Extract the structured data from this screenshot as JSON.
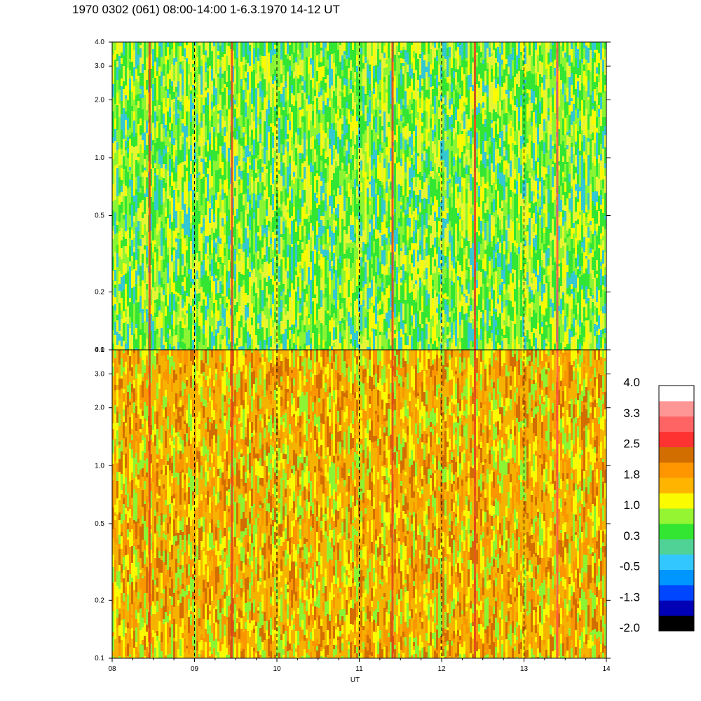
{
  "title": "1970 0302 (061) 08:00-14:00 1-6.3.1970  14-12 UT",
  "chart_data": {
    "type": "heatmap",
    "panels": [
      {
        "name": "upper",
        "dominant_colors": [
          "#33e633",
          "#8cf533",
          "#e6f533",
          "#33c8d2",
          "#fafa00"
        ]
      },
      {
        "name": "lower",
        "dominant_colors": [
          "#f5b300",
          "#fa9600",
          "#fafa00",
          "#8cf533",
          "#d26e00"
        ]
      }
    ],
    "xlabel": "UT",
    "x_ticks": [
      "08",
      "09",
      "10",
      "11",
      "12",
      "13",
      "14"
    ],
    "x_range": [
      8,
      14
    ],
    "y_scale": "log",
    "y_ticks": [
      "0.1",
      "0.2",
      "0.5",
      "1.0",
      "2.0",
      "3.0",
      "4.0"
    ],
    "y_range": [
      0.1,
      4.0
    ],
    "dashed_gridlines_x": [
      9,
      10,
      11,
      12,
      13
    ],
    "colorbar": {
      "labels": [
        "4.0",
        "3.3",
        "2.5",
        "1.8",
        "1.0",
        "0.3",
        "-0.5",
        "-1.3",
        "-2.0"
      ],
      "colors": [
        "#000000",
        "#0000b4",
        "#0046ff",
        "#0096ff",
        "#32c8ff",
        "#50d296",
        "#32e632",
        "#96f532",
        "#fafa00",
        "#ffb400",
        "#ff9600",
        "#d26e00",
        "#ff3232",
        "#ff6464",
        "#ff9696",
        "#ffffff"
      ]
    },
    "vertical_streaks": [
      {
        "x": 8.45,
        "color": "#e04020"
      },
      {
        "x": 9.45,
        "color": "#e04020"
      },
      {
        "x": 11.4,
        "color": "#e04020"
      },
      {
        "x": 12.4,
        "color": "#e04020"
      },
      {
        "x": 13.4,
        "color": "#ff5050"
      }
    ]
  }
}
